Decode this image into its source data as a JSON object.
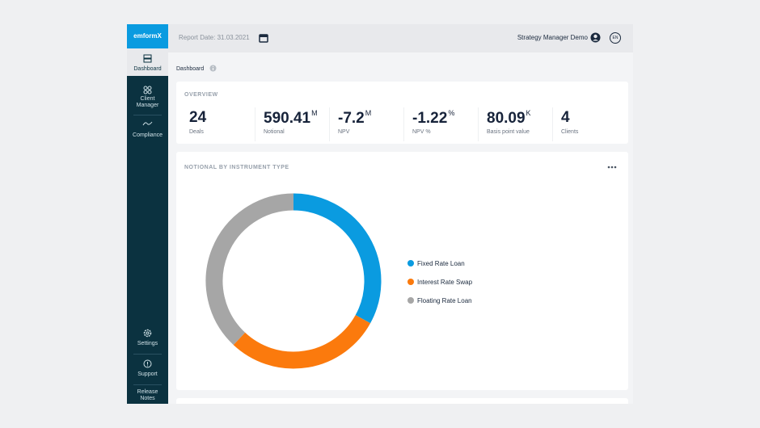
{
  "header": {
    "logo": "emformX",
    "report_date": "Report Date: 31.03.2021",
    "user": "Strategy Manager Demo",
    "language": "EN"
  },
  "sidebar": {
    "items": [
      "Dashboard",
      "Client Manager",
      "Compliance",
      "Settings",
      "Support",
      "Release Notes"
    ]
  },
  "breadcrumb": "Dashboard",
  "overview": {
    "title": "OVERVIEW",
    "kpis": [
      {
        "value": "24",
        "label": "Deals"
      },
      {
        "value": "590.41",
        "unit": "M",
        "label": "Notional"
      },
      {
        "value": "-7.2",
        "unit": "M",
        "label": "NPV"
      },
      {
        "value": "-1.22",
        "unit": "%",
        "label": "NPV %"
      },
      {
        "value": "80.09",
        "unit": "K",
        "label": "Basis point value"
      },
      {
        "value": "4",
        "label": "Clients"
      }
    ]
  },
  "chart_data": {
    "type": "pie",
    "title": "NOTIONAL BY INSTRUMENT TYPE",
    "categories": [
      "Fixed Rate Loan",
      "Interest Rate Swap",
      "Floating Rate Loan"
    ],
    "values": [
      33,
      29,
      38
    ],
    "colors": [
      "#0a9be0",
      "#fb7a0d",
      "#a6a6a6"
    ],
    "legend": "right"
  }
}
